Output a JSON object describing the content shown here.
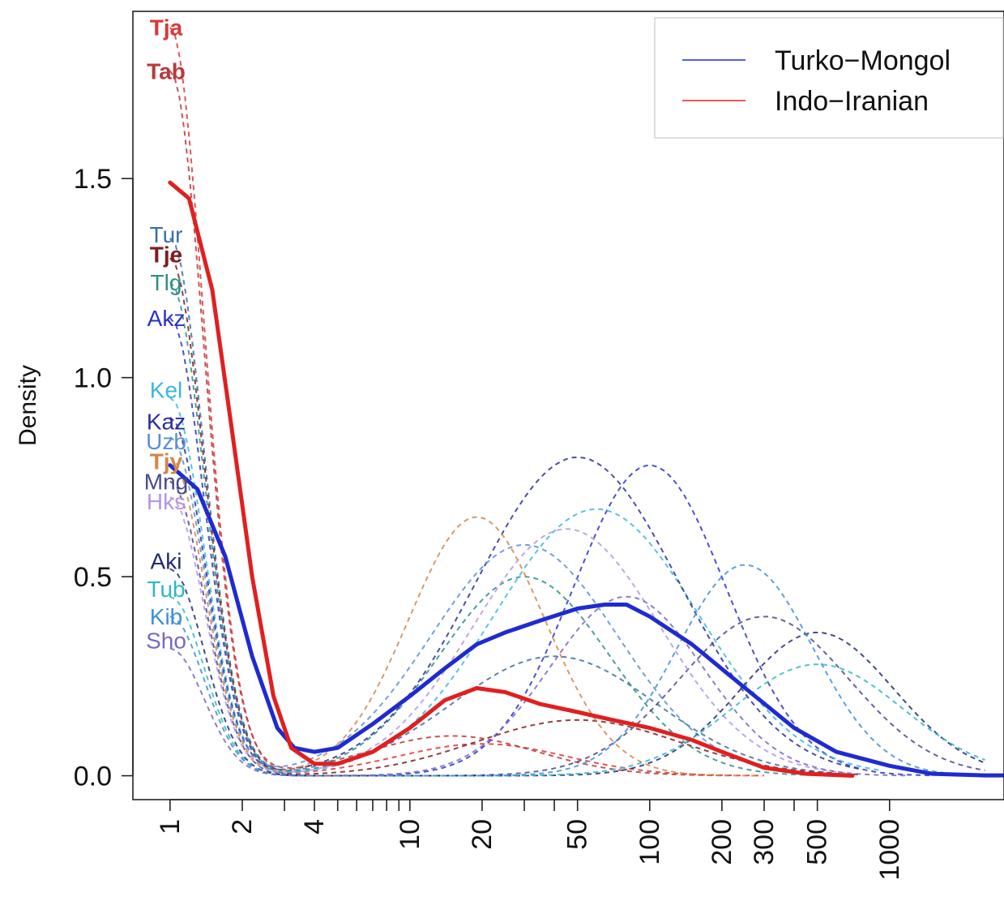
{
  "chart_data": {
    "type": "line",
    "title": "",
    "xlabel": "",
    "ylabel": "Density",
    "x_scale": "log",
    "xlim": [
      0.7,
      3000
    ],
    "ylim": [
      -0.06,
      1.92
    ],
    "x_ticks": [
      1,
      2,
      3,
      4,
      5,
      6,
      7,
      8,
      9,
      10,
      20,
      30,
      40,
      50,
      100,
      200,
      300,
      400,
      500,
      1000
    ],
    "x_tick_labels": [
      {
        "x": 1,
        "label": "1"
      },
      {
        "x": 2,
        "label": "2"
      },
      {
        "x": 4,
        "label": "4"
      },
      {
        "x": 10,
        "label": "10"
      },
      {
        "x": 20,
        "label": "20"
      },
      {
        "x": 50,
        "label": "50"
      },
      {
        "x": 100,
        "label": "100"
      },
      {
        "x": 200,
        "label": "200"
      },
      {
        "x": 300,
        "label": "300"
      },
      {
        "x": 500,
        "label": "500"
      },
      {
        "x": 1000,
        "label": "1000"
      }
    ],
    "y_ticks": [
      {
        "y": 0.0,
        "label": "0.0"
      },
      {
        "y": 0.5,
        "label": "0.5"
      },
      {
        "y": 1.0,
        "label": "1.0"
      },
      {
        "y": 1.5,
        "label": "1.5"
      }
    ],
    "legend": {
      "position": "top-right",
      "entries": [
        {
          "name": "Turko−Mongol",
          "color": "#1f2bd0"
        },
        {
          "name": "Indo−Iranian",
          "color": "#e02020"
        }
      ]
    },
    "series": [
      {
        "name": "Turko−Mongol",
        "color": "#1f2bd0",
        "style": "solid",
        "x": [
          1,
          1.3,
          1.7,
          2.2,
          2.8,
          3.3,
          4,
          5,
          7,
          10,
          14,
          19,
          25,
          35,
          50,
          65,
          80,
          100,
          150,
          250,
          400,
          600,
          1000,
          1500,
          2500,
          3000
        ],
        "y": [
          0.78,
          0.72,
          0.55,
          0.3,
          0.12,
          0.07,
          0.06,
          0.07,
          0.13,
          0.2,
          0.27,
          0.33,
          0.36,
          0.39,
          0.42,
          0.43,
          0.43,
          0.4,
          0.33,
          0.22,
          0.12,
          0.06,
          0.025,
          0.005,
          0.001,
          0.001
        ]
      },
      {
        "name": "Indo−Iranian",
        "color": "#e02020",
        "style": "solid",
        "x": [
          1,
          1.2,
          1.5,
          1.8,
          2.2,
          2.7,
          3.2,
          4,
          5,
          7,
          10,
          14,
          19,
          25,
          35,
          50,
          70,
          100,
          150,
          200,
          300,
          450,
          700
        ],
        "y": [
          1.49,
          1.45,
          1.22,
          0.88,
          0.5,
          0.2,
          0.07,
          0.03,
          0.03,
          0.06,
          0.12,
          0.19,
          0.22,
          0.21,
          0.18,
          0.16,
          0.14,
          0.12,
          0.09,
          0.06,
          0.02,
          0.005,
          0.0
        ]
      }
    ],
    "populations": [
      {
        "name": "Tja",
        "group": "Indo−Iranian",
        "color": "#d83838",
        "bold": true,
        "label_y": 1.88,
        "peak": 1.88,
        "center": 20,
        "second": 0.08,
        "width": 0.5
      },
      {
        "name": "Tab",
        "group": "Indo−Iranian",
        "color": "#b83a3a",
        "bold": true,
        "label_y": 1.77,
        "peak": 1.77,
        "center": 15,
        "second": 0.1,
        "width": 0.5
      },
      {
        "name": "Tur",
        "group": "Turko−Mongol",
        "color": "#3b6fa6",
        "bold": false,
        "label_y": 1.36,
        "peak": 1.35,
        "center": 40,
        "second": 0.3,
        "width": 0.6
      },
      {
        "name": "Tje",
        "group": "Indo−Iranian",
        "color": "#7d1e1e",
        "bold": true,
        "label_y": 1.31,
        "peak": 1.3,
        "center": 50,
        "second": 0.14,
        "width": 0.6
      },
      {
        "name": "Tlg",
        "group": "Turko−Mongol",
        "color": "#2b8f8a",
        "bold": false,
        "label_y": 1.24,
        "peak": 1.24,
        "center": 30,
        "second": 0.5,
        "width": 0.5
      },
      {
        "name": "Akz",
        "group": "Turko−Mongol",
        "color": "#2c33c4",
        "bold": false,
        "label_y": 1.15,
        "peak": 1.15,
        "center": 100,
        "second": 0.78,
        "width": 0.45
      },
      {
        "name": "Kel",
        "group": "Turko−Mongol",
        "color": "#3ab8e0",
        "bold": false,
        "label_y": 0.97,
        "peak": 0.95,
        "center": 60,
        "second": 0.67,
        "width": 0.6
      },
      {
        "name": "Kaz",
        "group": "Turko−Mongol",
        "color": "#2a2f96",
        "bold": false,
        "label_y": 0.89,
        "peak": 0.9,
        "center": 50,
        "second": 0.8,
        "width": 0.6
      },
      {
        "name": "Uzb",
        "group": "Turko−Mongol",
        "color": "#5a8fd6",
        "bold": false,
        "label_y": 0.84,
        "peak": 0.85,
        "center": 30,
        "second": 0.58,
        "width": 0.55
      },
      {
        "name": "Tjy",
        "group": "Indo−Iranian",
        "color": "#d3864a",
        "bold": true,
        "label_y": 0.79,
        "peak": 0.8,
        "center": 19,
        "second": 0.65,
        "width": 0.4
      },
      {
        "name": "Mng",
        "group": "Turko−Mongol",
        "color": "#4a4a8a",
        "bold": false,
        "label_y": 0.74,
        "peak": 0.74,
        "center": 300,
        "second": 0.4,
        "width": 0.5
      },
      {
        "name": "Hks",
        "group": "Turko−Mongol",
        "color": "#b496e6",
        "bold": false,
        "label_y": 0.69,
        "peak": 0.7,
        "center": 45,
        "second": 0.62,
        "width": 0.55
      },
      {
        "name": "Aki",
        "group": "Turko−Mongol",
        "color": "#232a72",
        "bold": false,
        "label_y": 0.54,
        "peak": 0.52,
        "center": 500,
        "second": 0.36,
        "width": 0.45
      },
      {
        "name": "Tub",
        "group": "Turko−Mongol",
        "color": "#31b8c2",
        "bold": false,
        "label_y": 0.47,
        "peak": 0.45,
        "center": 500,
        "second": 0.28,
        "width": 0.5
      },
      {
        "name": "Kib",
        "group": "Turko−Mongol",
        "color": "#3f8fd8",
        "bold": false,
        "label_y": 0.4,
        "peak": 0.4,
        "center": 250,
        "second": 0.53,
        "width": 0.4
      },
      {
        "name": "Sho",
        "group": "Turko−Mongol",
        "color": "#7a68c0",
        "bold": false,
        "label_y": 0.34,
        "peak": 0.32,
        "center": 80,
        "second": 0.45,
        "width": 0.45
      }
    ]
  }
}
